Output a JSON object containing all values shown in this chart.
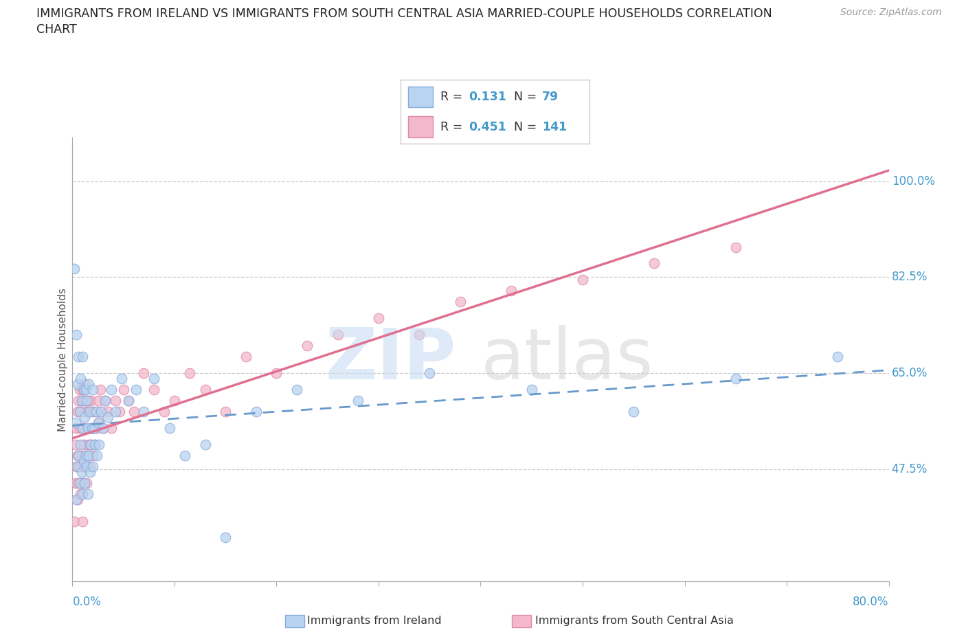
{
  "title_line1": "IMMIGRANTS FROM IRELAND VS IMMIGRANTS FROM SOUTH CENTRAL ASIA MARRIED-COUPLE HOUSEHOLDS CORRELATION",
  "title_line2": "CHART",
  "source_text": "Source: ZipAtlas.com",
  "ylabel": "Married-couple Households",
  "ytick_vals": [
    47.5,
    65.0,
    82.5,
    100.0
  ],
  "ytick_labels": [
    "47.5%",
    "65.0%",
    "82.5%",
    "100.0%"
  ],
  "xmin": 0.0,
  "xmax": 80.0,
  "ymin": 27.0,
  "ymax": 108.0,
  "hgrid_vals": [
    47.5,
    65.0,
    82.5,
    100.0
  ],
  "ireland_R": 0.131,
  "ireland_N": 79,
  "asia_R": 0.451,
  "asia_N": 141,
  "ireland_face_color": "#b8d4f0",
  "ireland_edge_color": "#88aadd",
  "asia_face_color": "#f4b8cc",
  "asia_edge_color": "#e088a8",
  "ireland_line_color": "#6699cc",
  "asia_line_color": "#e07090",
  "legend_label_ireland": "Immigrants from Ireland",
  "legend_label_asia": "Immigrants from South Central Asia",
  "axis_color": "#4499cc",
  "ireland_x": [
    0.2,
    0.3,
    0.4,
    0.4,
    0.5,
    0.5,
    0.6,
    0.6,
    0.7,
    0.7,
    0.8,
    0.8,
    0.9,
    0.9,
    1.0,
    1.0,
    1.0,
    1.1,
    1.1,
    1.2,
    1.2,
    1.3,
    1.3,
    1.4,
    1.4,
    1.5,
    1.5,
    1.6,
    1.6,
    1.7,
    1.7,
    1.8,
    1.9,
    2.0,
    2.0,
    2.1,
    2.2,
    2.3,
    2.4,
    2.5,
    2.6,
    2.8,
    3.0,
    3.2,
    3.5,
    3.8,
    4.2,
    4.8,
    5.5,
    6.2,
    7.0,
    8.0,
    9.5,
    11.0,
    13.0,
    15.0,
    18.0,
    22.0,
    28.0,
    35.0,
    45.0,
    55.0,
    65.0,
    75.0
  ],
  "ireland_y": [
    84.0,
    56.0,
    42.0,
    72.0,
    48.0,
    63.0,
    50.0,
    68.0,
    45.0,
    58.0,
    52.0,
    64.0,
    47.0,
    60.0,
    43.0,
    55.0,
    68.0,
    49.0,
    62.0,
    45.0,
    57.0,
    50.0,
    62.0,
    48.0,
    60.0,
    43.0,
    55.0,
    50.0,
    63.0,
    47.0,
    58.0,
    52.0,
    55.0,
    48.0,
    62.0,
    55.0,
    52.0,
    58.0,
    50.0,
    56.0,
    52.0,
    58.0,
    55.0,
    60.0,
    57.0,
    62.0,
    58.0,
    64.0,
    60.0,
    62.0,
    58.0,
    64.0,
    55.0,
    50.0,
    52.0,
    35.0,
    58.0,
    62.0,
    60.0,
    65.0,
    62.0,
    58.0,
    64.0,
    68.0
  ],
  "asia_x": [
    0.2,
    0.3,
    0.3,
    0.4,
    0.4,
    0.5,
    0.5,
    0.5,
    0.6,
    0.6,
    0.7,
    0.7,
    0.7,
    0.8,
    0.8,
    0.8,
    0.9,
    0.9,
    1.0,
    1.0,
    1.0,
    1.0,
    1.1,
    1.1,
    1.1,
    1.2,
    1.2,
    1.2,
    1.3,
    1.3,
    1.4,
    1.4,
    1.5,
    1.5,
    1.6,
    1.6,
    1.7,
    1.7,
    1.8,
    1.8,
    1.9,
    2.0,
    2.0,
    2.1,
    2.2,
    2.3,
    2.4,
    2.5,
    2.6,
    2.7,
    2.8,
    3.0,
    3.2,
    3.5,
    3.8,
    4.2,
    4.6,
    5.0,
    5.5,
    6.0,
    7.0,
    8.0,
    9.0,
    10.0,
    11.5,
    13.0,
    15.0,
    17.0,
    20.0,
    23.0,
    26.0,
    30.0,
    34.0,
    38.0,
    43.0,
    50.0,
    57.0,
    65.0
  ],
  "asia_y": [
    38.0,
    52.0,
    45.0,
    55.0,
    48.0,
    42.0,
    50.0,
    58.0,
    45.0,
    60.0,
    48.0,
    55.0,
    62.0,
    43.0,
    50.0,
    58.0,
    45.0,
    60.0,
    38.0,
    48.0,
    55.0,
    62.0,
    45.0,
    52.0,
    60.0,
    48.0,
    55.0,
    63.0,
    50.0,
    58.0,
    45.0,
    60.0,
    50.0,
    58.0,
    52.0,
    60.0,
    48.0,
    55.0,
    52.0,
    60.0,
    55.0,
    50.0,
    58.0,
    55.0,
    52.0,
    58.0,
    55.0,
    60.0,
    56.0,
    62.0,
    58.0,
    55.0,
    60.0,
    58.0,
    55.0,
    60.0,
    58.0,
    62.0,
    60.0,
    58.0,
    65.0,
    62.0,
    58.0,
    60.0,
    65.0,
    62.0,
    58.0,
    68.0,
    65.0,
    70.0,
    72.0,
    75.0,
    72.0,
    78.0,
    80.0,
    82.0,
    85.0,
    88.0
  ]
}
